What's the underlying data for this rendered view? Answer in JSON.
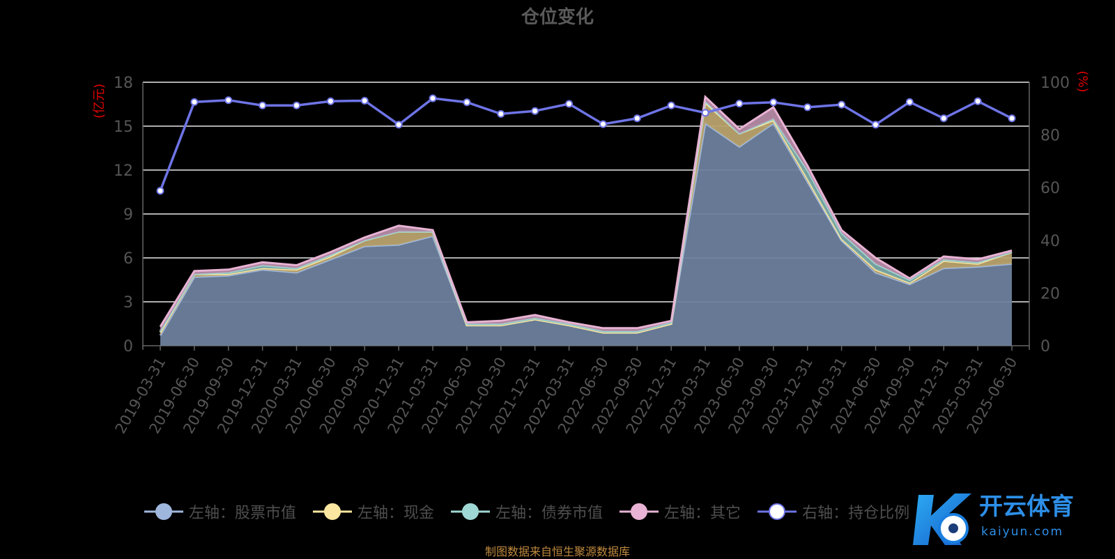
{
  "title": "仓位变化",
  "source_note": "制图数据来自恒生聚源数据库",
  "watermark": {
    "brand": "开云体育",
    "domain": "kaiyun.com"
  },
  "legend": [
    {
      "label": "左轴：股票市值",
      "color": "#9fb7dd"
    },
    {
      "label": "左轴：现金",
      "color": "#fbe7a0"
    },
    {
      "label": "左轴：债券市值",
      "color": "#9fd7d4"
    },
    {
      "label": "左轴：其它",
      "color": "#e8b3d4"
    },
    {
      "label": "右轴：持仓比例",
      "color": "#6e74e6"
    }
  ],
  "chart_data": {
    "type": "area",
    "title": "仓位变化",
    "y_left_label": "(亿元)",
    "y_right_label": "(%)",
    "y_left_range": [
      0,
      18
    ],
    "y_left_ticks": [
      0,
      3,
      6,
      9,
      12,
      15,
      18
    ],
    "y_right_range": [
      0,
      100
    ],
    "y_right_ticks": [
      0,
      20,
      40,
      60,
      80,
      100
    ],
    "grid": true,
    "legend_position": "bottom",
    "categories": [
      "2019-03-31",
      "2019-06-30",
      "2019-09-30",
      "2019-12-31",
      "2020-03-31",
      "2020-06-30",
      "2020-09-30",
      "2020-12-31",
      "2021-03-31",
      "2021-06-30",
      "2021-09-30",
      "2021-12-31",
      "2022-03-31",
      "2022-06-30",
      "2022-09-30",
      "2022-12-31",
      "2023-03-31",
      "2023-06-30",
      "2023-09-30",
      "2023-12-31",
      "2024-03-31",
      "2024-06-30",
      "2024-09-30",
      "2024-12-31",
      "2025-03-31",
      "2025-06-30"
    ],
    "series": [
      {
        "name": "左轴：股票市值",
        "axis": "left",
        "type": "stacked-area",
        "color": "#9fb7dd",
        "values": [
          0.7,
          4.7,
          4.8,
          5.2,
          5.0,
          5.9,
          6.8,
          6.9,
          7.5,
          1.4,
          1.4,
          1.8,
          1.4,
          0.9,
          0.9,
          1.5,
          15.2,
          13.6,
          15.2,
          11.2,
          7.2,
          5.0,
          4.2,
          5.3,
          5.4,
          5.6
        ]
      },
      {
        "name": "左轴：现金",
        "axis": "left",
        "type": "stacked-area",
        "color": "#fbe7a0",
        "values": [
          0.2,
          0.2,
          0.1,
          0.1,
          0.2,
          0.2,
          0.4,
          0.9,
          0.3,
          0.0,
          0.0,
          0.0,
          0.0,
          0.0,
          0.0,
          0.0,
          1.4,
          0.9,
          0.2,
          0.2,
          0.1,
          0.2,
          0.1,
          0.5,
          0.2,
          0.8
        ]
      },
      {
        "name": "左轴：债券市值",
        "axis": "left",
        "type": "stacked-area",
        "color": "#9fd7d4",
        "values": [
          0.1,
          0.0,
          0.1,
          0.2,
          0.1,
          0.1,
          0.0,
          0.0,
          0.0,
          0.1,
          0.1,
          0.1,
          0.1,
          0.1,
          0.1,
          0.1,
          0.1,
          0.0,
          0.1,
          0.6,
          0.4,
          0.4,
          0.2,
          0.1,
          0.1,
          0.0
        ]
      },
      {
        "name": "左轴：其它",
        "axis": "left",
        "type": "stacked-area",
        "color": "#e8b3d4",
        "values": [
          0.3,
          0.2,
          0.2,
          0.2,
          0.2,
          0.2,
          0.2,
          0.4,
          0.1,
          0.1,
          0.2,
          0.2,
          0.1,
          0.2,
          0.2,
          0.1,
          0.3,
          0.3,
          0.8,
          0.3,
          0.2,
          0.4,
          0.1,
          0.2,
          0.2,
          0.1
        ]
      },
      {
        "name": "右轴：持仓比例",
        "axis": "right",
        "type": "line",
        "color": "#6e74e6",
        "values": [
          58.8,
          92.5,
          93.2,
          91.2,
          91.2,
          92.8,
          93.0,
          83.9,
          93.9,
          92.4,
          88.0,
          89.1,
          91.8,
          84.1,
          86.3,
          91.2,
          88.4,
          91.9,
          92.4,
          90.5,
          91.5,
          83.9,
          92.5,
          86.3,
          92.8,
          86.3
        ]
      }
    ]
  }
}
